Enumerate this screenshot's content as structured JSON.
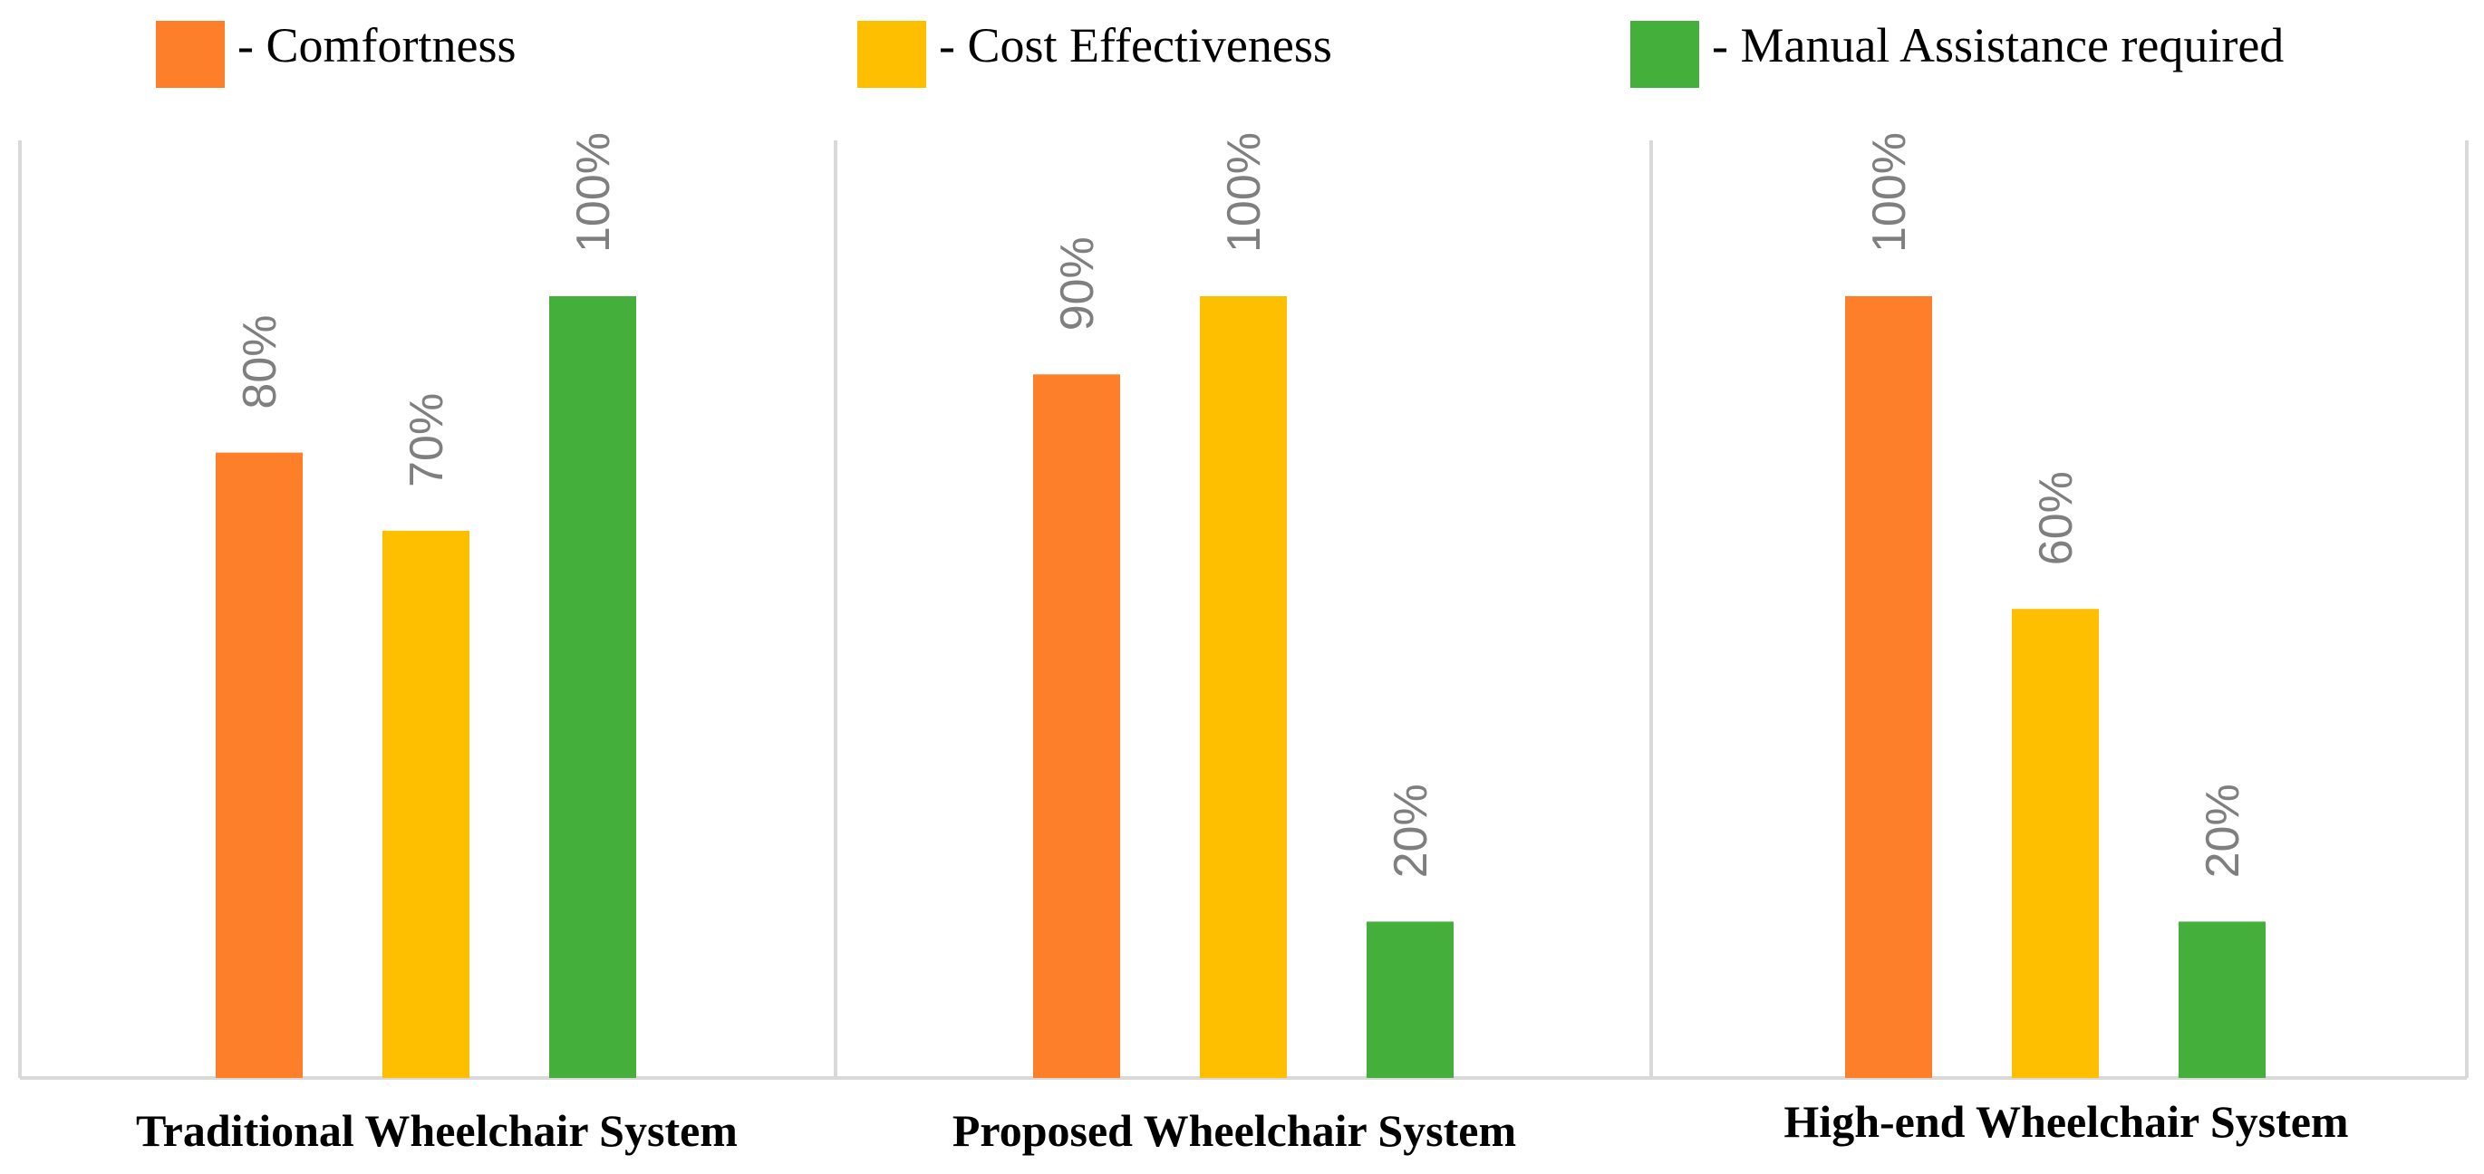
{
  "chart_data": {
    "type": "bar",
    "title": "",
    "xlabel": "",
    "ylabel": "",
    "ylim": [
      0,
      100
    ],
    "grid": false,
    "legend_position": "top",
    "categories": [
      "Traditional Wheelchair System",
      "Proposed Wheelchair System",
      "High-end Wheelchair System"
    ],
    "series": [
      {
        "name": "- Comfortness",
        "color": "#fd7f29",
        "values": [
          80,
          90,
          100
        ]
      },
      {
        "name": "- Cost Effectiveness",
        "color": "#fdbf00",
        "values": [
          70,
          100,
          60
        ]
      },
      {
        "name": "- Manual Assistance required",
        "color": "#45af3c",
        "values": [
          100,
          20,
          20
        ]
      }
    ],
    "data_label_suffix": "%",
    "divider_color": "#d9d9d9",
    "axis_color": "#d9d9d9",
    "label_color": "#7f7f7f"
  }
}
